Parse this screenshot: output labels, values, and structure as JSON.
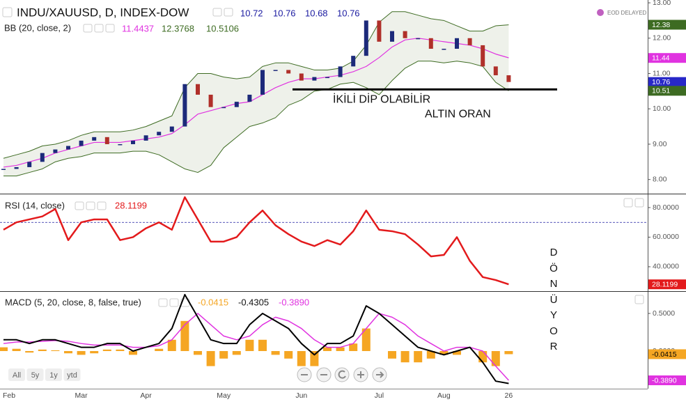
{
  "chart_data": [
    {
      "type": "candlestick",
      "title": "INDU/XAUUSD, D, INDEX-DOW",
      "ohlc_values": [
        10.72,
        10.76,
        10.68,
        10.76
      ],
      "indicator": "BB (20, close, 2)",
      "indicator_values": [
        11.4437,
        12.3768,
        10.5106
      ],
      "series": [
        {
          "color": "#1c2a7a",
          "values": [
            8.3,
            8.35,
            8.5,
            8.75,
            8.85,
            8.95,
            9.1,
            9.2,
            9.0,
            9.0,
            9.1,
            9.25,
            9.35,
            9.5,
            10.7,
            10.4,
            10.05,
            10.05,
            10.2,
            10.4,
            11.1,
            11.1,
            11.0,
            10.8,
            10.9,
            10.9,
            11.2,
            11.5,
            12.5,
            11.9,
            12.2,
            12.0,
            12.0,
            11.7,
            11.7,
            12.0,
            11.8,
            11.2,
            10.95,
            10.76
          ]
        },
        {
          "color": "#e033e0",
          "values": [
            8.35,
            8.4,
            8.5,
            8.6,
            8.75,
            8.85,
            8.95,
            9.05,
            9.05,
            9.05,
            9.1,
            9.15,
            9.2,
            9.3,
            9.55,
            9.85,
            9.95,
            10.05,
            10.15,
            10.2,
            10.4,
            10.6,
            10.75,
            10.85,
            10.85,
            10.9,
            10.95,
            11.05,
            11.2,
            11.45,
            11.75,
            11.95,
            12.0,
            11.95,
            11.9,
            11.85,
            11.8,
            11.7,
            11.55,
            11.4437
          ]
        },
        {
          "color": "#3d6b22",
          "values": [
            8.6,
            8.7,
            8.8,
            8.95,
            9.0,
            9.1,
            9.25,
            9.35,
            9.35,
            9.35,
            9.4,
            9.5,
            9.65,
            9.8,
            10.6,
            11.0,
            11.0,
            10.9,
            10.85,
            10.9,
            11.2,
            11.3,
            11.3,
            11.2,
            11.1,
            11.1,
            11.15,
            11.35,
            11.8,
            12.45,
            12.75,
            12.75,
            12.65,
            12.55,
            12.5,
            12.35,
            12.2,
            12.2,
            12.35,
            12.3768
          ]
        },
        {
          "color": "#3d6b22",
          "values": [
            8.1,
            8.1,
            8.2,
            8.3,
            8.5,
            8.6,
            8.65,
            8.75,
            8.75,
            8.75,
            8.8,
            8.8,
            8.7,
            8.5,
            8.3,
            8.2,
            8.4,
            8.9,
            9.2,
            9.5,
            9.6,
            9.75,
            10.1,
            10.25,
            10.5,
            10.55,
            10.7,
            10.75,
            10.6,
            10.4,
            10.8,
            11.15,
            11.35,
            11.35,
            11.3,
            11.35,
            11.3,
            11.2,
            10.75,
            10.5106
          ]
        }
      ],
      "down_color": "#b0302a",
      "band_fill": "#eef1ea",
      "ylim": [
        7.6,
        13.08
      ],
      "yticks": [
        {
          "value": 8,
          "label": "8.00"
        },
        {
          "value": 9,
          "label": "9.00"
        },
        {
          "value": 10,
          "label": "10.00"
        },
        {
          "value": 11,
          "label": "11.00"
        },
        {
          "value": 12,
          "label": "12.00"
        },
        {
          "value": 13,
          "label": "13.00"
        }
      ],
      "tags": [
        {
          "value": 12.38,
          "color": "#3d6b22"
        },
        {
          "value": 11.44,
          "color": "#e033e0"
        },
        {
          "value": 10.76,
          "color": "#2828c8"
        },
        {
          "value": 10.51,
          "color": "#3d6b22"
        }
      ],
      "hline": 10.55,
      "annotations": [
        "İKİLİ DİP OLABİLİR",
        "ALTIN ORAN"
      ]
    },
    {
      "type": "line",
      "title": "RSI (14, close)",
      "last_value": 28.1199,
      "series": [
        {
          "color": "#e31a1c",
          "values": [
            65,
            70,
            72,
            74,
            79,
            58,
            70,
            72,
            72,
            58,
            60,
            66,
            70,
            65,
            87,
            72,
            57,
            57,
            60,
            70,
            78,
            68,
            62,
            57,
            54,
            58,
            55,
            64,
            78,
            65,
            64,
            62,
            55,
            47,
            48,
            60,
            44,
            33,
            31,
            28.1199
          ]
        }
      ],
      "level": 70,
      "level_color": "#1a1aa0",
      "ylim": [
        23.5,
        89.4
      ],
      "yticks": [
        {
          "value": 40,
          "label": "40.0000"
        },
        {
          "value": 60,
          "label": "60.0000"
        },
        {
          "value": 80,
          "label": "80.0000"
        }
      ],
      "tags": [
        {
          "value": 28.1199,
          "color": "#e31a1c"
        }
      ],
      "annotation": "DÖNÜYOR"
    },
    {
      "type": "macd",
      "title": "MACD (5, 20, close, 8, false, true)",
      "header_values": [
        -0.0415,
        -0.4305,
        {
          "value": -0.389,
          "label": "-0.3890"
        }
      ],
      "categories": [
        "Feb",
        null,
        null,
        null,
        null,
        null,
        "Mar",
        null,
        null,
        null,
        null,
        "Apr",
        null,
        null,
        null,
        null,
        null,
        "May",
        null,
        null,
        null,
        null,
        null,
        "Jun",
        null,
        null,
        null,
        null,
        null,
        "Jul",
        null,
        null,
        null,
        null,
        "Aug",
        null,
        null,
        null,
        null,
        "26"
      ],
      "series": [
        {
          "color": "#f5a623",
          "values": [
            0.05,
            0.03,
            -0.02,
            0.02,
            0.01,
            -0.03,
            -0.05,
            -0.03,
            0.02,
            0.02,
            -0.05,
            0,
            0.03,
            0.15,
            0.4,
            -0.05,
            -0.2,
            -0.1,
            -0.05,
            0.15,
            0.15,
            -0.05,
            -0.1,
            -0.2,
            -0.2,
            0.05,
            0.05,
            0.1,
            0.3,
            0,
            -0.1,
            -0.15,
            -0.15,
            -0.1,
            -0.05,
            -0.05,
            0,
            -0.15,
            -0.2,
            -0.0415
          ]
        },
        {
          "color": "#000000",
          "values": [
            0.15,
            0.15,
            0.1,
            0.15,
            0.15,
            0.1,
            0.05,
            0.05,
            0.1,
            0.1,
            0.0,
            0.05,
            0.1,
            0.3,
            0.75,
            0.45,
            0.15,
            0.1,
            0.1,
            0.35,
            0.5,
            0.4,
            0.3,
            0.1,
            -0.05,
            0.1,
            0.1,
            0.2,
            0.6,
            0.5,
            0.35,
            0.2,
            0.05,
            0.0,
            -0.05,
            0.0,
            0.05,
            -0.15,
            -0.4,
            -0.4305
          ]
        },
        {
          "color": "#e033e0",
          "values": [
            0.1,
            0.12,
            0.12,
            0.13,
            0.14,
            0.13,
            0.1,
            0.08,
            0.08,
            0.08,
            0.05,
            0.05,
            0.07,
            0.15,
            0.35,
            0.5,
            0.35,
            0.2,
            0.15,
            0.2,
            0.35,
            0.45,
            0.4,
            0.3,
            0.15,
            0.05,
            0.05,
            0.1,
            0.3,
            0.5,
            0.45,
            0.35,
            0.2,
            0.1,
            0.0,
            0.05,
            0.05,
            0.0,
            -0.2,
            -0.389
          ]
        }
      ],
      "ylim": [
        -0.5,
        0.796
      ],
      "yticks": [
        {
          "value": 0,
          "label": "0.0000"
        },
        {
          "value": 0.5,
          "label": "0.5000"
        }
      ],
      "tags": [
        {
          "value": -0.0415,
          "color": "#f5a623",
          "text_color": "#000000"
        },
        {
          "value": -0.389,
          "label": "-0.3890",
          "color": "#e033e0"
        }
      ]
    }
  ],
  "ui": {
    "status": "EOD DELAYED",
    "range_buttons": [
      "All",
      "5y",
      "1y",
      "ytd"
    ]
  }
}
